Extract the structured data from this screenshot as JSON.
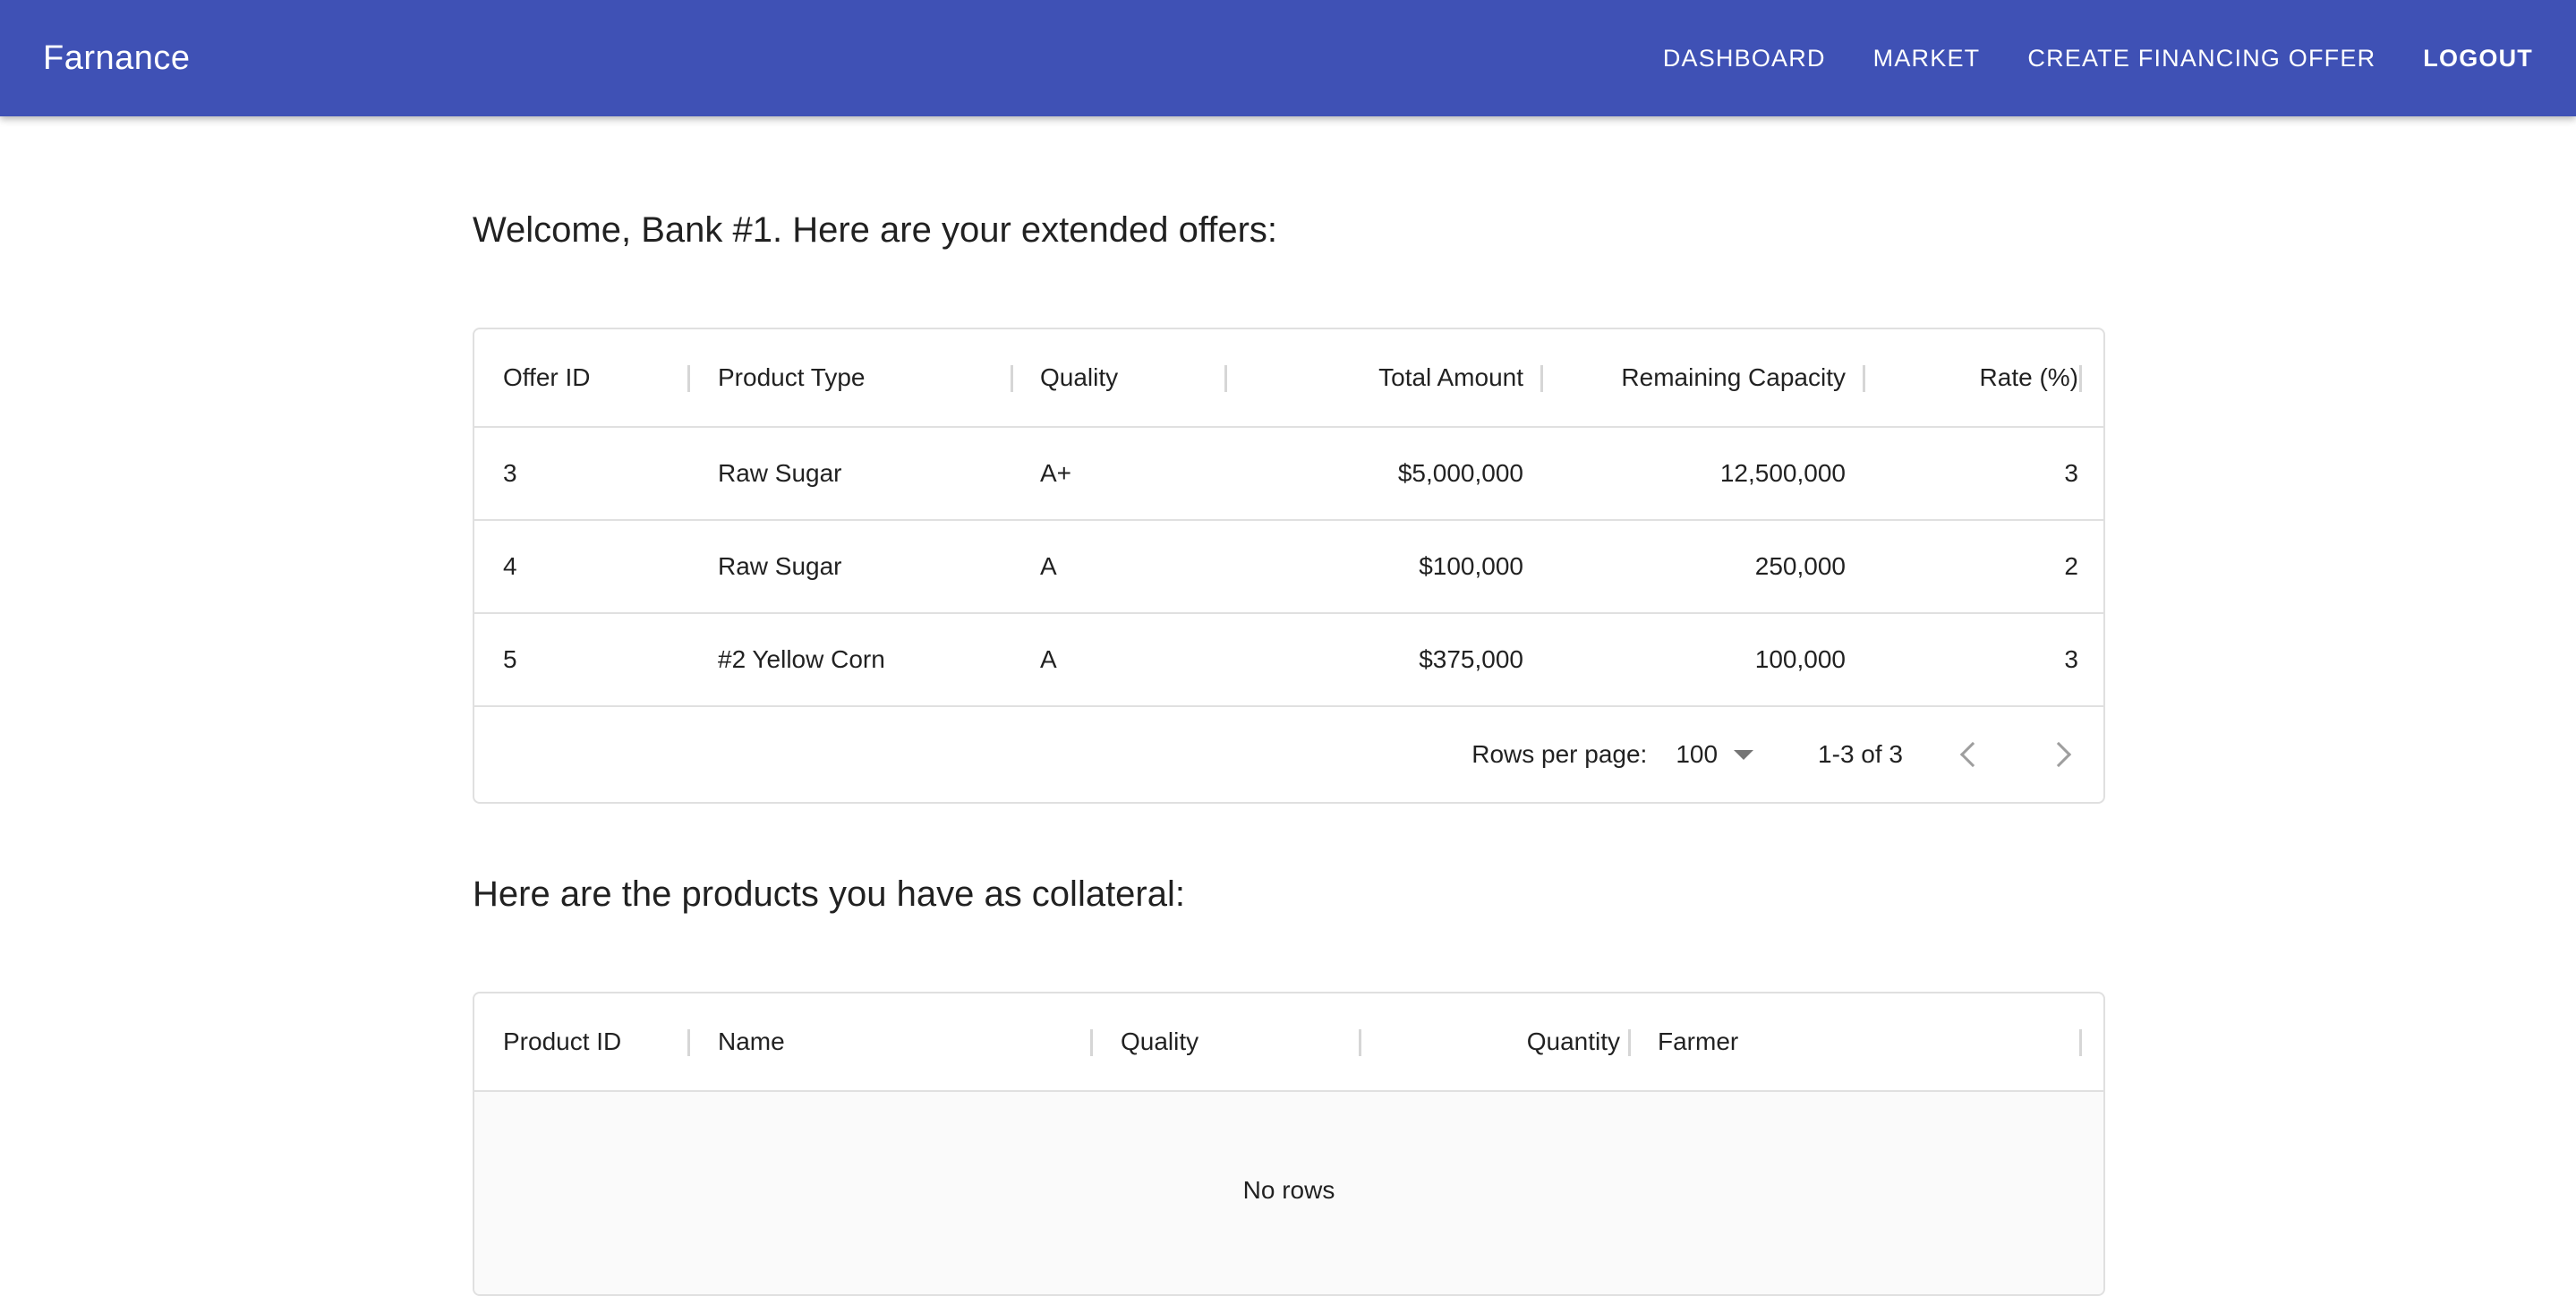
{
  "header": {
    "brand": "Farnance",
    "nav": [
      "DASHBOARD",
      "MARKET",
      "CREATE FINANCING OFFER"
    ],
    "logout": "LOGOUT",
    "color": "#3f51b5"
  },
  "offers": {
    "heading": "Welcome, Bank #1. Here are your extended offers:",
    "columns": [
      "Offer ID",
      "Product Type",
      "Quality",
      "Total Amount",
      "Remaining Capacity",
      "Rate (%)"
    ],
    "rows": [
      [
        "3",
        "Raw Sugar",
        "A+",
        "$5,000,000",
        "12,500,000",
        "3"
      ],
      [
        "4",
        "Raw Sugar",
        "A",
        "$100,000",
        "250,000",
        "2"
      ],
      [
        "5",
        "#2 Yellow Corn",
        "A",
        "$375,000",
        "100,000",
        "3"
      ]
    ],
    "pagination": {
      "rows_per_page_label": "Rows per page:",
      "rows_per_page": "100",
      "range": "1-3 of 3"
    }
  },
  "collateral": {
    "heading": "Here are the products you have as collateral:",
    "columns": [
      "Product ID",
      "Name",
      "Quality",
      "Quantity",
      "Farmer"
    ],
    "empty": "No rows"
  }
}
